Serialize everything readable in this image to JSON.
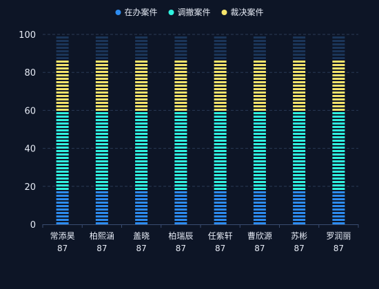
{
  "chart_data": {
    "type": "bar",
    "stacked": true,
    "categories": [
      "常添昊",
      "柏熙涵",
      "盖晓",
      "柏瑞辰",
      "任紫轩",
      "曹欣源",
      "苏彬",
      "罗润丽"
    ],
    "category_totals": [
      "87",
      "87",
      "87",
      "87",
      "87",
      "87",
      "87",
      "87"
    ],
    "series": [
      {
        "name": "在办案件",
        "color": "#2d8cf0",
        "values": [
          17,
          17,
          17,
          17,
          17,
          17,
          17,
          17
        ]
      },
      {
        "name": "调撤案件",
        "color": "#2ff3e0",
        "values": [
          43,
          43,
          43,
          43,
          43,
          43,
          43,
          43
        ]
      },
      {
        "name": "裁决案件",
        "color": "#f5e46b",
        "values": [
          27,
          27,
          27,
          27,
          27,
          27,
          27,
          27
        ]
      }
    ],
    "background_track": {
      "max": 100,
      "color": "#1b3558"
    },
    "ylim": [
      0,
      100
    ],
    "yticks": [
      0,
      20,
      40,
      60,
      80,
      100
    ],
    "grid": true,
    "legend_position": "top-center",
    "title": "",
    "xlabel": "",
    "ylabel": ""
  }
}
